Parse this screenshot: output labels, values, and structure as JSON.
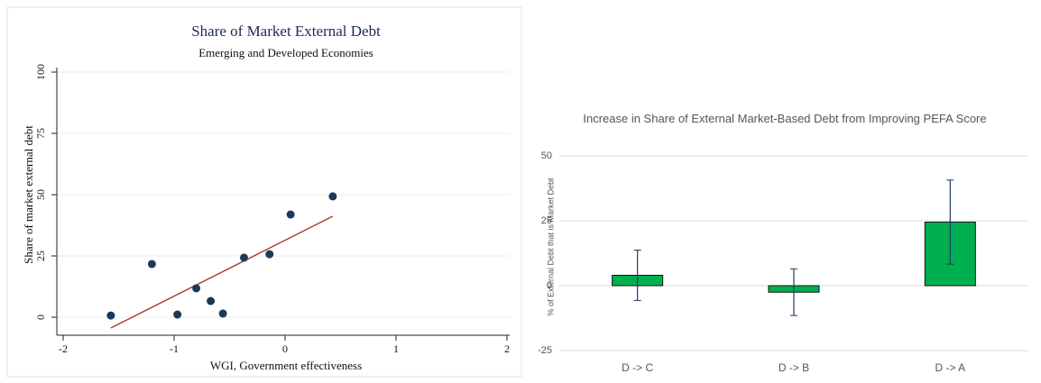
{
  "chart_data": [
    {
      "type": "scatter",
      "title": "Share of Market External Debt",
      "subtitle": "Emerging and Developed Economies",
      "x_label": "WGI, Government effectiveness",
      "y_label": "Share of market external debt",
      "x": [
        -1.57,
        -1.2,
        -0.97,
        -0.8,
        -0.67,
        -0.56,
        -0.37,
        -0.14,
        0.05,
        0.43
      ],
      "values": [
        0.7,
        21.7,
        1.1,
        11.8,
        6.6,
        1.5,
        24.3,
        25.7,
        41.9,
        49.3
      ],
      "color": "#1a3a5c",
      "fit": {
        "x": [
          -1.57,
          0.43
        ],
        "values": [
          -4.4,
          41.2
        ],
        "color": "#a0302a"
      },
      "xlim": [
        -2,
        2
      ],
      "xticks": [
        -2,
        -1,
        0,
        1,
        2
      ],
      "ylim": [
        0,
        100
      ],
      "yticks": [
        0,
        25,
        50,
        75,
        100
      ],
      "grid": true
    },
    {
      "type": "bar",
      "title": "Increase in Share of External Market-Based Debt from Improving PEFA Score",
      "y_label": "% of External Debt that is Market Debt",
      "categories": [
        "D -> C",
        "D -> B",
        "D -> A"
      ],
      "values": [
        4,
        -2.5,
        24.5
      ],
      "errors": [
        9.7,
        9,
        16.2
      ],
      "color": "#00b050",
      "error_color": "#1f3864",
      "ylim": [
        -25,
        50
      ],
      "yticks": [
        -25,
        0,
        25,
        50
      ],
      "grid": true
    }
  ]
}
